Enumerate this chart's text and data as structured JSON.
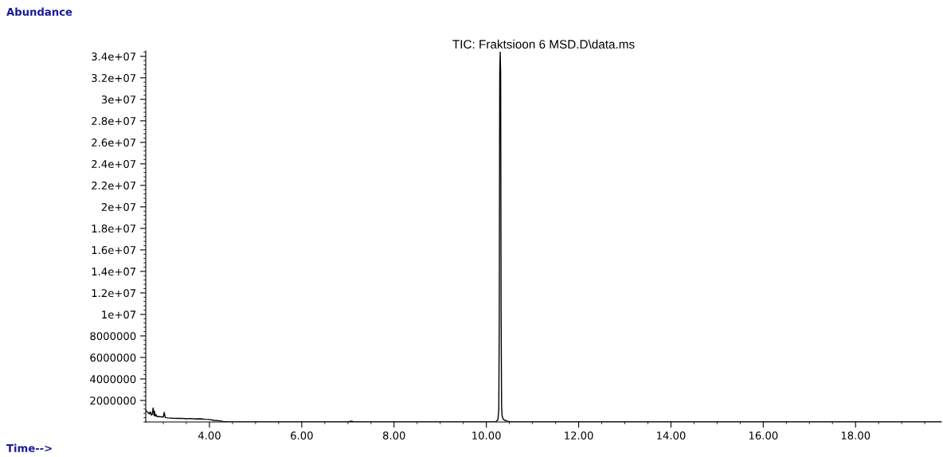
{
  "chart_data": {
    "type": "line",
    "title": "TIC: Fraktsioon 6 MSD.D\\data.ms",
    "xlabel": "Time-->",
    "ylabel": "Abundance",
    "series": [
      {
        "color": "#000000",
        "x": [
          2.62,
          2.66,
          2.7,
          2.72,
          2.74,
          2.76,
          2.78,
          2.8,
          2.81,
          2.82,
          2.84,
          2.86,
          2.9,
          2.95,
          3.0,
          3.02,
          3.04,
          3.06,
          3.1,
          3.2,
          3.3,
          3.4,
          3.5,
          3.6,
          3.7,
          3.8,
          3.9,
          4.0,
          4.1,
          4.2,
          4.3,
          4.4,
          4.5,
          5.0,
          6.0,
          7.0,
          7.08,
          7.12,
          7.2,
          8.0,
          9.0,
          10.0,
          10.2,
          10.25,
          10.27,
          10.28,
          10.29,
          10.3,
          10.31,
          10.32,
          10.33,
          10.34,
          10.36,
          10.4,
          10.45,
          10.5,
          10.55,
          11.0,
          12.0,
          14.0,
          16.0,
          18.0,
          19.86
        ],
        "values": [
          1100000,
          900000,
          750000,
          950000,
          650000,
          700000,
          1300000,
          600000,
          1000000,
          550000,
          700000,
          500000,
          500000,
          480000,
          450000,
          900000,
          450000,
          400000,
          380000,
          350000,
          330000,
          340000,
          300000,
          320000,
          280000,
          300000,
          250000,
          230000,
          150000,
          120000,
          50000,
          20000,
          0,
          0,
          0,
          0,
          80000,
          0,
          0,
          0,
          0,
          0,
          0,
          200000,
          1200000,
          10000000,
          32500000,
          34400000,
          32500000,
          10200000,
          1500000,
          600000,
          300000,
          150000,
          80000,
          30000,
          0,
          0,
          0,
          0,
          0,
          0,
          0
        ]
      }
    ],
    "xlim": [
      2.62,
      19.86
    ],
    "xticks": [
      {
        "value": 4,
        "label": "4.00"
      },
      {
        "value": 6,
        "label": "6.00"
      },
      {
        "value": 8,
        "label": "8.00"
      },
      {
        "value": 10,
        "label": "10.00"
      },
      {
        "value": 12,
        "label": "12.00"
      },
      {
        "value": 14,
        "label": "14.00"
      },
      {
        "value": 16,
        "label": "16.00"
      },
      {
        "value": 18,
        "label": "18.00"
      }
    ],
    "ylim": [
      0,
      34500000
    ],
    "yticks": [
      2000000,
      4000000,
      6000000,
      8000000,
      {
        "value": 10000000,
        "label": "1e+07"
      },
      {
        "value": 12000000,
        "label": "1.2e+07"
      },
      {
        "value": 14000000,
        "label": "1.4e+07"
      },
      {
        "value": 16000000,
        "label": "1.6e+07"
      },
      {
        "value": 18000000,
        "label": "1.8e+07"
      },
      {
        "value": 20000000,
        "label": "2e+07"
      },
      {
        "value": 22000000,
        "label": "2.2e+07"
      },
      {
        "value": 24000000,
        "label": "2.4e+07"
      },
      {
        "value": 26000000,
        "label": "2.6e+07"
      },
      {
        "value": 28000000,
        "label": "2.8e+07"
      },
      {
        "value": 30000000,
        "label": "3e+07"
      },
      {
        "value": 32000000,
        "label": "3.2e+07"
      },
      {
        "value": 34000000,
        "label": "3.4e+07"
      }
    ]
  }
}
